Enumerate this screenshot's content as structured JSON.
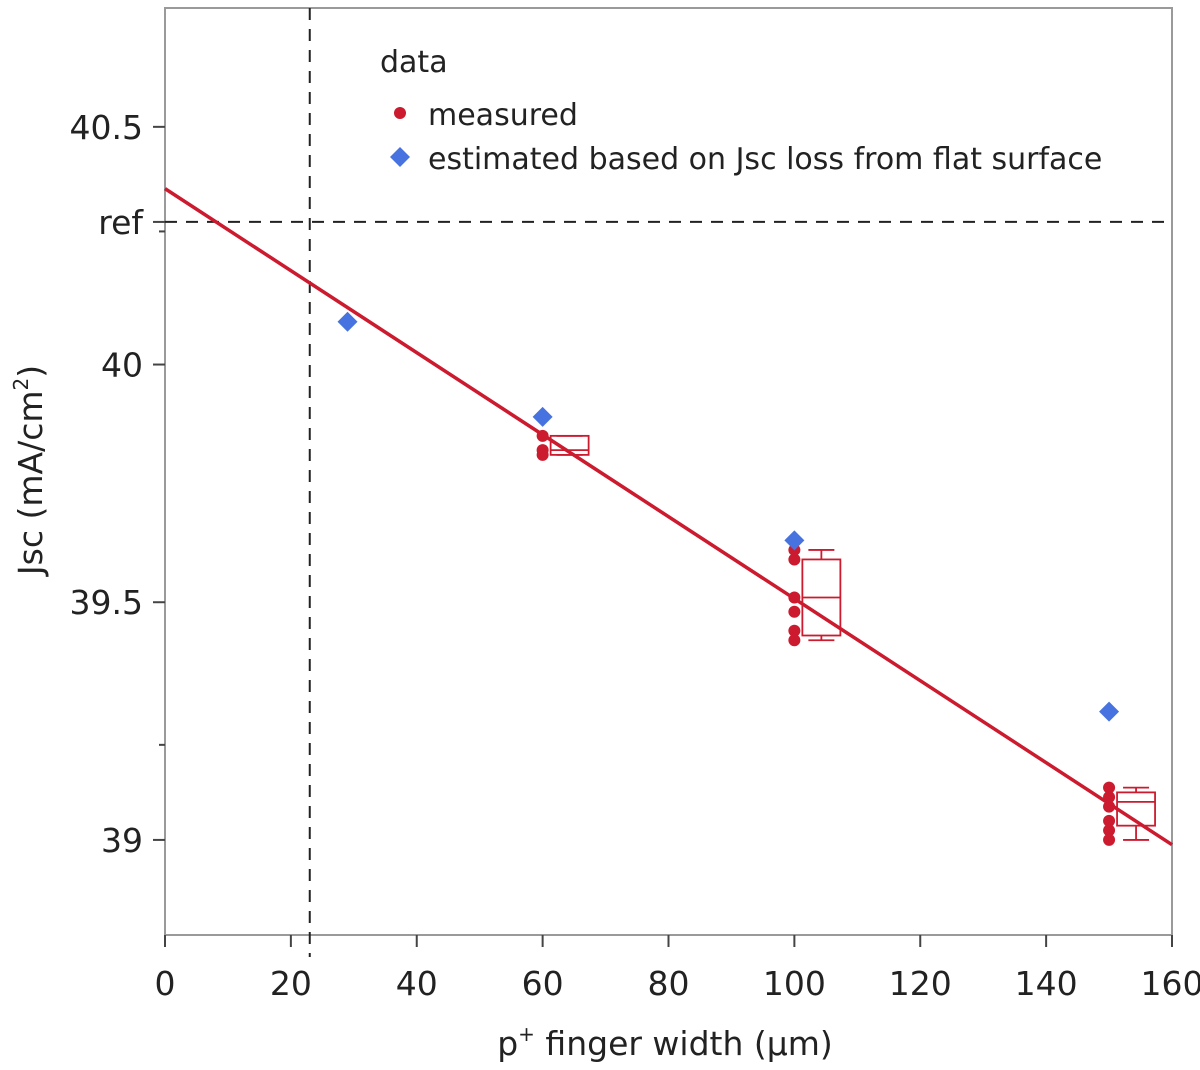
{
  "chart_data": {
    "type": "scatter",
    "title": "",
    "xlabel_base": "p",
    "xlabel_sup": "+",
    "xlabel_rest": " finger width (µm)",
    "ylabel_base": "Jsc (mA/cm",
    "ylabel_sup": "2",
    "ylabel_end": ")",
    "xlim": [
      0,
      160
    ],
    "ylim": [
      38.8,
      40.75
    ],
    "x_ticks": [
      0,
      20,
      40,
      60,
      80,
      100,
      120,
      140,
      160
    ],
    "x_tick_labels": [
      "0",
      "20",
      "40",
      "60",
      "80",
      "100",
      "120",
      "140",
      "160"
    ],
    "y_ticks": [
      {
        "value": 39.0,
        "label": "39"
      },
      {
        "value": 39.5,
        "label": "39.5"
      },
      {
        "value": 40.0,
        "label": "40"
      },
      {
        "value": 40.3,
        "label": "ref"
      },
      {
        "value": 40.5,
        "label": "40.5"
      }
    ],
    "y_minor_ticks": [
      39.2,
      40.28
    ],
    "reference_lines": {
      "y_ref": 40.3,
      "x_vertical": 23
    },
    "legend": {
      "title": "data",
      "position": "top-right",
      "entries": [
        {
          "label": "measured",
          "marker": "circle",
          "color": "#cc1a2e"
        },
        {
          "label": "estimated based on Jsc loss from flat surface",
          "marker": "diamond",
          "color": "#4673e0"
        }
      ]
    },
    "series": [
      {
        "name": "measured",
        "marker": "circle",
        "color": "#cc1a2e",
        "points": [
          {
            "x": 60,
            "y": 39.85
          },
          {
            "x": 60,
            "y": 39.82
          },
          {
            "x": 60,
            "y": 39.81
          },
          {
            "x": 100,
            "y": 39.61
          },
          {
            "x": 100,
            "y": 39.59
          },
          {
            "x": 100,
            "y": 39.51
          },
          {
            "x": 100,
            "y": 39.48
          },
          {
            "x": 100,
            "y": 39.44
          },
          {
            "x": 100,
            "y": 39.42
          },
          {
            "x": 150,
            "y": 39.11
          },
          {
            "x": 150,
            "y": 39.09
          },
          {
            "x": 150,
            "y": 39.07
          },
          {
            "x": 150,
            "y": 39.04
          },
          {
            "x": 150,
            "y": 39.02
          },
          {
            "x": 150,
            "y": 39.0
          }
        ]
      },
      {
        "name": "estimated based on Jsc loss from flat surface",
        "marker": "diamond",
        "color": "#4673e0",
        "points": [
          {
            "x": 29,
            "y": 40.09
          },
          {
            "x": 60,
            "y": 39.89
          },
          {
            "x": 100,
            "y": 39.63
          },
          {
            "x": 150,
            "y": 39.27
          }
        ]
      }
    ],
    "fit_line": {
      "color": "#cc1a2e",
      "from": {
        "x": 0,
        "y": 40.37
      },
      "to": {
        "x": 160,
        "y": 38.99
      }
    },
    "box_plots": [
      {
        "x": 60,
        "min": 39.81,
        "q1": 39.81,
        "median": 39.82,
        "q3": 39.85,
        "max": 39.85
      },
      {
        "x": 100,
        "min": 39.42,
        "q1": 39.43,
        "median": 39.51,
        "q3": 39.59,
        "max": 39.61
      },
      {
        "x": 150,
        "min": 39.0,
        "q1": 39.03,
        "median": 39.08,
        "q3": 39.1,
        "max": 39.11
      }
    ],
    "box_color": "#cc1a2e",
    "grid": false
  }
}
